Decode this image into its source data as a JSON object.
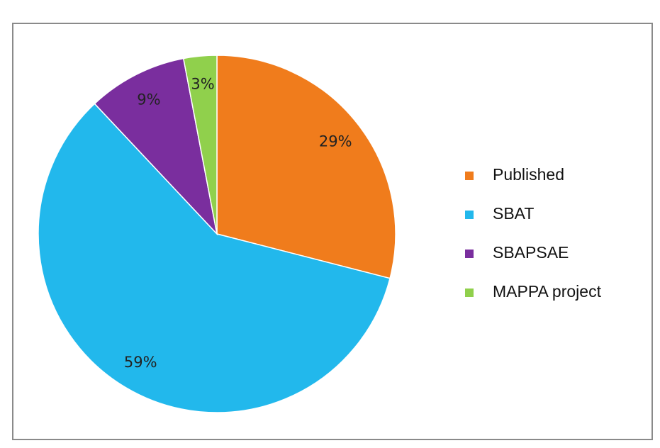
{
  "chart_data": {
    "type": "pie",
    "categories": [
      "Published",
      "SBAT",
      "SBAPSAE",
      "MAPPA project"
    ],
    "values": [
      29,
      59,
      9,
      3
    ],
    "value_labels": [
      "29%",
      "59%",
      "9%",
      "3%"
    ],
    "colors": [
      "#f07c1c",
      "#22b8ec",
      "#7a2e9e",
      "#90d04c"
    ],
    "legend": "right"
  }
}
